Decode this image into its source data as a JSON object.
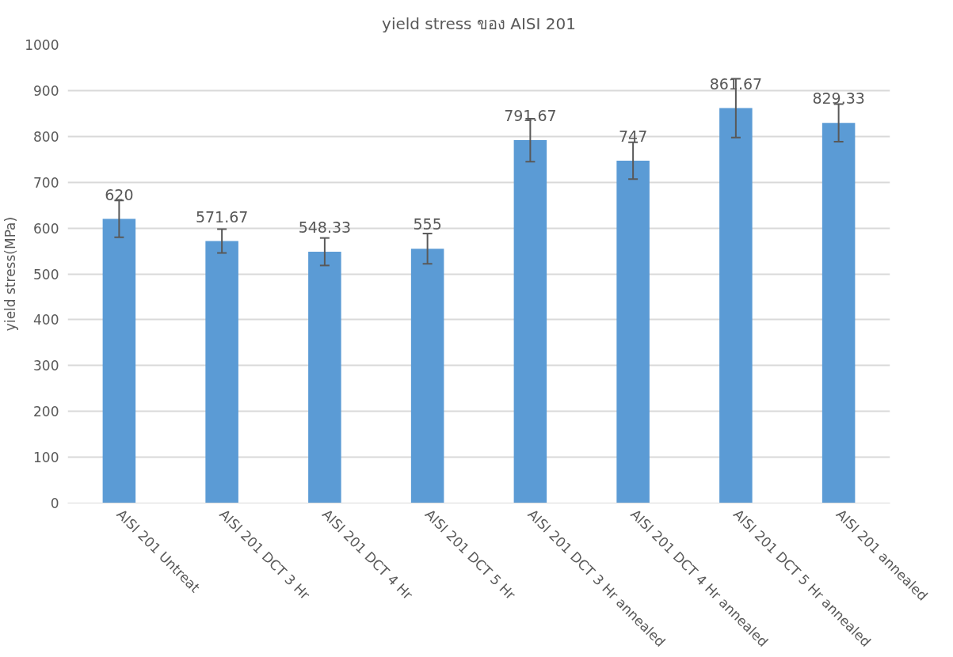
{
  "chart_data": {
    "type": "bar",
    "title": "yield stress ของ AISI 201",
    "ylabel": "yield stress(MPa)",
    "categories": [
      "AISI 201 Untreat",
      "AISI 201 DCT 3 Hr",
      "AISI 201 DCT 4 Hr",
      "AISI 201 DCT 5 Hr",
      "AISI 201 DCT 3 Hr annealed",
      "AISI 201 DCT 4 Hr annealed",
      "AISI 201 DCT 5 Hr annealed",
      "AISI 201 annealed"
    ],
    "values": [
      620,
      571.67,
      548.33,
      555,
      791.67,
      747,
      861.67,
      829.33
    ],
    "errors": [
      40,
      26,
      30,
      33,
      47,
      40,
      64,
      41
    ],
    "color": "#5b9bd5",
    "ylim": [
      0,
      1000
    ],
    "yticks": [
      0,
      100,
      200,
      300,
      400,
      500,
      600,
      700,
      800,
      900,
      1000
    ],
    "grid": "y",
    "data_labels": true
  }
}
